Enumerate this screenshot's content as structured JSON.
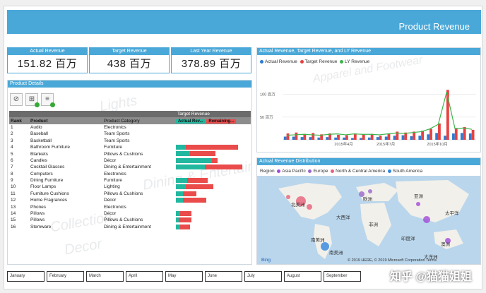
{
  "header": {
    "title": "Product Revenue"
  },
  "kpis": [
    {
      "label": "Actual Revenue",
      "value": "151.82 百万"
    },
    {
      "label": "Target Revenue",
      "value": "438 百万"
    },
    {
      "label": "Last Year Revenue",
      "value": "378.89 百万"
    }
  ],
  "details": {
    "title": "Product Details",
    "col_rank": "Rank",
    "col_product": "Product",
    "col_category": "Product Category",
    "col_target": "Target Revenue",
    "chip_actual": "Actual Rev...",
    "chip_remaining": "Remaining...",
    "rows": [
      {
        "rank": "1",
        "product": "Audio",
        "category": "Electronics",
        "actual": 0,
        "remaining": 0
      },
      {
        "rank": "2",
        "product": "Baseball",
        "category": "Team Sports",
        "actual": 0,
        "remaining": 0
      },
      {
        "rank": "3",
        "product": "Basketball",
        "category": "Team Sports",
        "actual": 0,
        "remaining": 0
      },
      {
        "rank": "4",
        "product": "Bathroom Furniture",
        "category": "Furniture",
        "actual": 0.14,
        "remaining": 0.72
      },
      {
        "rank": "5",
        "product": "Blankets",
        "category": "Pillows & Cushions",
        "actual": 0.2,
        "remaining": 0.35
      },
      {
        "rank": "6",
        "product": "Candles",
        "category": "Décor",
        "actual": 0.5,
        "remaining": 0.08
      },
      {
        "rank": "7",
        "product": "Cocktail Glasses",
        "category": "Dining & Entertainment",
        "actual": 0.4,
        "remaining": 0.52
      },
      {
        "rank": "8",
        "product": "Computers",
        "category": "Electronics",
        "actual": 0,
        "remaining": 0
      },
      {
        "rank": "9",
        "product": "Dining Furniture",
        "category": "Furniture",
        "actual": 0.16,
        "remaining": 0.28
      },
      {
        "rank": "10",
        "product": "Floor Lamps",
        "category": "Lighting",
        "actual": 0.14,
        "remaining": 0.38
      },
      {
        "rank": "11",
        "product": "Furniture Cushions",
        "category": "Pillows & Cushions",
        "actual": 0.1,
        "remaining": 0.18
      },
      {
        "rank": "12",
        "product": "Home Fragrances",
        "category": "Décor",
        "actual": 0.1,
        "remaining": 0.32
      },
      {
        "rank": "13",
        "product": "Phones",
        "category": "Electronics",
        "actual": 0,
        "remaining": 0
      },
      {
        "rank": "14",
        "product": "Pillows",
        "category": "Décor",
        "actual": 0.06,
        "remaining": 0.16
      },
      {
        "rank": "15",
        "product": "Pillows",
        "category": "Pillows & Cushions",
        "actual": 0.04,
        "remaining": 0.18
      },
      {
        "rank": "16",
        "product": "Stemware",
        "category": "Dining & Entertainment",
        "actual": 0.06,
        "remaining": 0.14
      }
    ]
  },
  "line_panel": {
    "title": "Actual Revenue, Target Revenue, and LY Revenue",
    "legend": [
      "Actual Revenue",
      "Target Revenue",
      "LY Revenue"
    ],
    "colors": {
      "actual": "#2e7bd1",
      "target": "#e84040",
      "ly": "#3cb44b"
    }
  },
  "chart_data": {
    "type": "bar",
    "ylabel": "",
    "yticks": [
      "100 百万",
      "50 百万"
    ],
    "xticks": [
      "2015年4月",
      "2015年7月",
      "2015年10月"
    ],
    "ylim": [
      0,
      140
    ],
    "series": [
      {
        "name": "Actual Revenue",
        "values": [
          7,
          7,
          6,
          6,
          5,
          6,
          5,
          5,
          4,
          4,
          5,
          6,
          7,
          9,
          10,
          8,
          9,
          12,
          15,
          9,
          14,
          15,
          14
        ]
      },
      {
        "name": "Target Revenue",
        "values": [
          14,
          16,
          13,
          15,
          12,
          14,
          11,
          10,
          14,
          12,
          13,
          9,
          14,
          18,
          16,
          18,
          20,
          24,
          36,
          110,
          26,
          28,
          22
        ]
      },
      {
        "name": "LY Revenue",
        "values": [
          10,
          11,
          12,
          11,
          10,
          12,
          13,
          11,
          13,
          12,
          12,
          11,
          13,
          15,
          14,
          16,
          18,
          24,
          34,
          105,
          24,
          26,
          23
        ]
      }
    ]
  },
  "map_panel": {
    "title": "Actual Revenue Distribution",
    "region_label": "Region",
    "regions": [
      {
        "name": "Asia Pacific",
        "color": "#a04ad8"
      },
      {
        "name": "Europe",
        "color": "#9966cc"
      },
      {
        "name": "North & Central America",
        "color": "#e8607a"
      },
      {
        "name": "South America",
        "color": "#2e86de"
      }
    ],
    "map_labels": [
      {
        "text": "北美洲"
      },
      {
        "text": "欧洲"
      },
      {
        "text": "亚洲"
      },
      {
        "text": "太平洋"
      },
      {
        "text": "大西洋"
      },
      {
        "text": "非洲"
      },
      {
        "text": "南美洲"
      },
      {
        "text": "澳洲"
      },
      {
        "text": "印度洋"
      },
      {
        "text": "南美洲"
      },
      {
        "text": "大洋洲"
      }
    ],
    "bing": "Bing",
    "copyright": "© 2019 HERE, © 2019 Microsoft Corporation Terms"
  },
  "months": [
    "January",
    "February",
    "March",
    "April",
    "May",
    "June",
    "July",
    "August",
    "September"
  ],
  "watermarks": [
    "Apparel and Footwear",
    "Lights",
    "Furniture",
    "Dining & Entertainment",
    "Decor",
    "Dining",
    "Electronics",
    "Collection"
  ],
  "brand": "知乎 @猫猫姐姐"
}
